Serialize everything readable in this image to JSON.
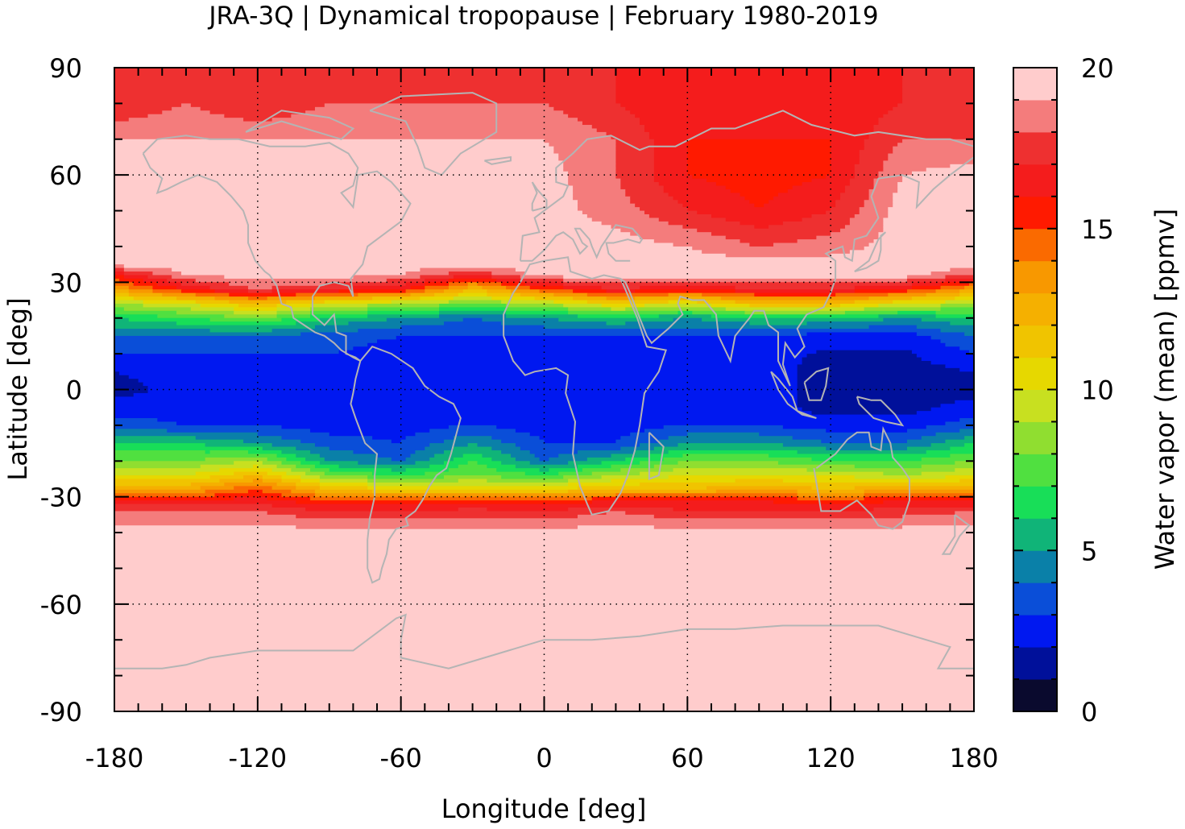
{
  "chart_data": {
    "type": "heatmap",
    "title": "JRA-3Q | Dynamical tropopause | February 1980-2019",
    "xlabel": "Longitude [deg]",
    "ylabel": "Latitude [deg]",
    "xlim": [
      -180,
      180
    ],
    "ylim": [
      -90,
      90
    ],
    "xticks": [
      "-180",
      "-120",
      "-60",
      "0",
      "60",
      "120",
      "180"
    ],
    "yticks": [
      "90",
      "60",
      "30",
      "0",
      "-30",
      "-60",
      "-90"
    ],
    "grid": "dotted",
    "colorbar": {
      "label": "Water vapor (mean) [ppmv]",
      "range": [
        0,
        20
      ],
      "ticks": [
        "20",
        "15",
        "10",
        "5",
        "0"
      ],
      "levels": [
        {
          "lo": 0,
          "hi": 1,
          "color": "#0a0a2e"
        },
        {
          "lo": 1,
          "hi": 2,
          "color": "#00109a"
        },
        {
          "lo": 2,
          "hi": 3,
          "color": "#0018f0"
        },
        {
          "lo": 3,
          "hi": 4,
          "color": "#0a4ed8"
        },
        {
          "lo": 4,
          "hi": 5,
          "color": "#0a80a8"
        },
        {
          "lo": 5,
          "hi": 6,
          "color": "#10b478"
        },
        {
          "lo": 6,
          "hi": 7,
          "color": "#18de58"
        },
        {
          "lo": 7,
          "hi": 8,
          "color": "#50e040"
        },
        {
          "lo": 8,
          "hi": 9,
          "color": "#90de30"
        },
        {
          "lo": 9,
          "hi": 10,
          "color": "#c8e020"
        },
        {
          "lo": 10,
          "hi": 11,
          "color": "#e6d800"
        },
        {
          "lo": 11,
          "hi": 12,
          "color": "#f0c400"
        },
        {
          "lo": 12,
          "hi": 13,
          "color": "#f5b000"
        },
        {
          "lo": 13,
          "hi": 14,
          "color": "#f89800"
        },
        {
          "lo": 14,
          "hi": 15,
          "color": "#fa6a00"
        },
        {
          "lo": 15,
          "hi": 16,
          "color": "#ff1a00"
        },
        {
          "lo": 16,
          "hi": 17,
          "color": "#f41c1c"
        },
        {
          "lo": 17,
          "hi": 18,
          "color": "#ee3030"
        },
        {
          "lo": 18,
          "hi": 19,
          "color": "#f47c7c"
        },
        {
          "lo": 19,
          "hi": 20,
          "color": "#ffcccc"
        }
      ]
    },
    "field": {
      "lat": [
        90,
        80,
        70,
        60,
        50,
        40,
        35,
        32,
        28,
        24,
        20,
        15,
        10,
        5,
        0,
        -5,
        -10,
        -15,
        -20,
        -24,
        -28,
        -31,
        -34,
        -40,
        -60,
        -90
      ],
      "lon": [
        -180,
        -150,
        -120,
        -90,
        -60,
        -30,
        0,
        30,
        60,
        90,
        120,
        150,
        180
      ],
      "values": [
        [
          17,
          17,
          17,
          17,
          17,
          17,
          17,
          17,
          17,
          17,
          17,
          17,
          17
        ],
        [
          17,
          18,
          17,
          18,
          18,
          18,
          18,
          17,
          16,
          16,
          16,
          17,
          17
        ],
        [
          19,
          19,
          19,
          19,
          19,
          19,
          19,
          18,
          16,
          16,
          16,
          18,
          18
        ],
        [
          19.5,
          19.5,
          19.5,
          19.5,
          19.5,
          19.5,
          19.5,
          18,
          16,
          15.5,
          16,
          19,
          19.5
        ],
        [
          19.5,
          19.5,
          19.5,
          19.5,
          19.5,
          19.5,
          19.5,
          18.5,
          17,
          16,
          17,
          19.5,
          19.5
        ],
        [
          19.5,
          19.5,
          19.5,
          19.5,
          19.5,
          19.5,
          19.5,
          19.5,
          19,
          18,
          18.5,
          19.5,
          19.5
        ],
        [
          19.5,
          19.5,
          19.5,
          19.5,
          19.5,
          19.5,
          19.5,
          19.5,
          19.5,
          19.5,
          19.5,
          19.5,
          19.5
        ],
        [
          16,
          19,
          19.5,
          19.5,
          19,
          17,
          19.5,
          19.5,
          19.5,
          19.5,
          19.5,
          19.5,
          18
        ],
        [
          13,
          16,
          18,
          17,
          16,
          12,
          15,
          17,
          16,
          17,
          17,
          16,
          13
        ],
        [
          9,
          10,
          12,
          10,
          9,
          8,
          9,
          11,
          10,
          12,
          12,
          10,
          9
        ],
        [
          6,
          7,
          8,
          6,
          5,
          4,
          5,
          6,
          5,
          6,
          6,
          5,
          6
        ],
        [
          4,
          4,
          4,
          3.5,
          3,
          3,
          3,
          3,
          3,
          3,
          2.5,
          2.5,
          4
        ],
        [
          3,
          3,
          3,
          3,
          2.5,
          2.5,
          2.5,
          2.5,
          2.5,
          2.5,
          1.8,
          1.8,
          3
        ],
        [
          2,
          2.5,
          2.5,
          2.5,
          2.5,
          2.5,
          2.5,
          2.5,
          2.5,
          2.5,
          1.5,
          1.5,
          2
        ],
        [
          1.5,
          2.5,
          2.5,
          2.5,
          2.5,
          2.5,
          2.5,
          2.5,
          2.5,
          2.5,
          1.5,
          1.5,
          1.5
        ],
        [
          2.5,
          2.5,
          2.5,
          2.5,
          2.5,
          2.5,
          2.5,
          2.5,
          2.5,
          2.5,
          1.5,
          1.5,
          2.5
        ],
        [
          3.5,
          3,
          3,
          2.5,
          2.5,
          3,
          2.5,
          2.5,
          3,
          3,
          2.5,
          2.5,
          3.5
        ],
        [
          6,
          6,
          5,
          3.5,
          3,
          5,
          3,
          3,
          5,
          5,
          4,
          4,
          6
        ],
        [
          8,
          8,
          9,
          5,
          4,
          7,
          4,
          6,
          8,
          8,
          7,
          7,
          8
        ],
        [
          10,
          10,
          12,
          8,
          7,
          8,
          7,
          9,
          10,
          10,
          10,
          9,
          10
        ],
        [
          13,
          13,
          15,
          12,
          11,
          11,
          11,
          12,
          12,
          13,
          12,
          13,
          13
        ],
        [
          16,
          16,
          16.5,
          15,
          15,
          15,
          15,
          16,
          16,
          16,
          15,
          16,
          16
        ],
        [
          18,
          18,
          18,
          17,
          17,
          17.5,
          17,
          18,
          17,
          17,
          17,
          17.5,
          18
        ],
        [
          19.5,
          19.5,
          19.5,
          19.5,
          19.5,
          19.5,
          19.5,
          19.5,
          19.5,
          19.5,
          19.5,
          19.5,
          19.5
        ],
        [
          19.5,
          19.5,
          19.5,
          19.5,
          19.5,
          19.5,
          19.5,
          19.5,
          19.5,
          19.5,
          19.5,
          19.5,
          19.5
        ],
        [
          19.5,
          19.5,
          19.5,
          19.5,
          19.5,
          19.5,
          19.5,
          19.5,
          19.5,
          19.5,
          19.5,
          19.5,
          19.5
        ]
      ]
    },
    "overlay": "coastlines (gray)"
  }
}
